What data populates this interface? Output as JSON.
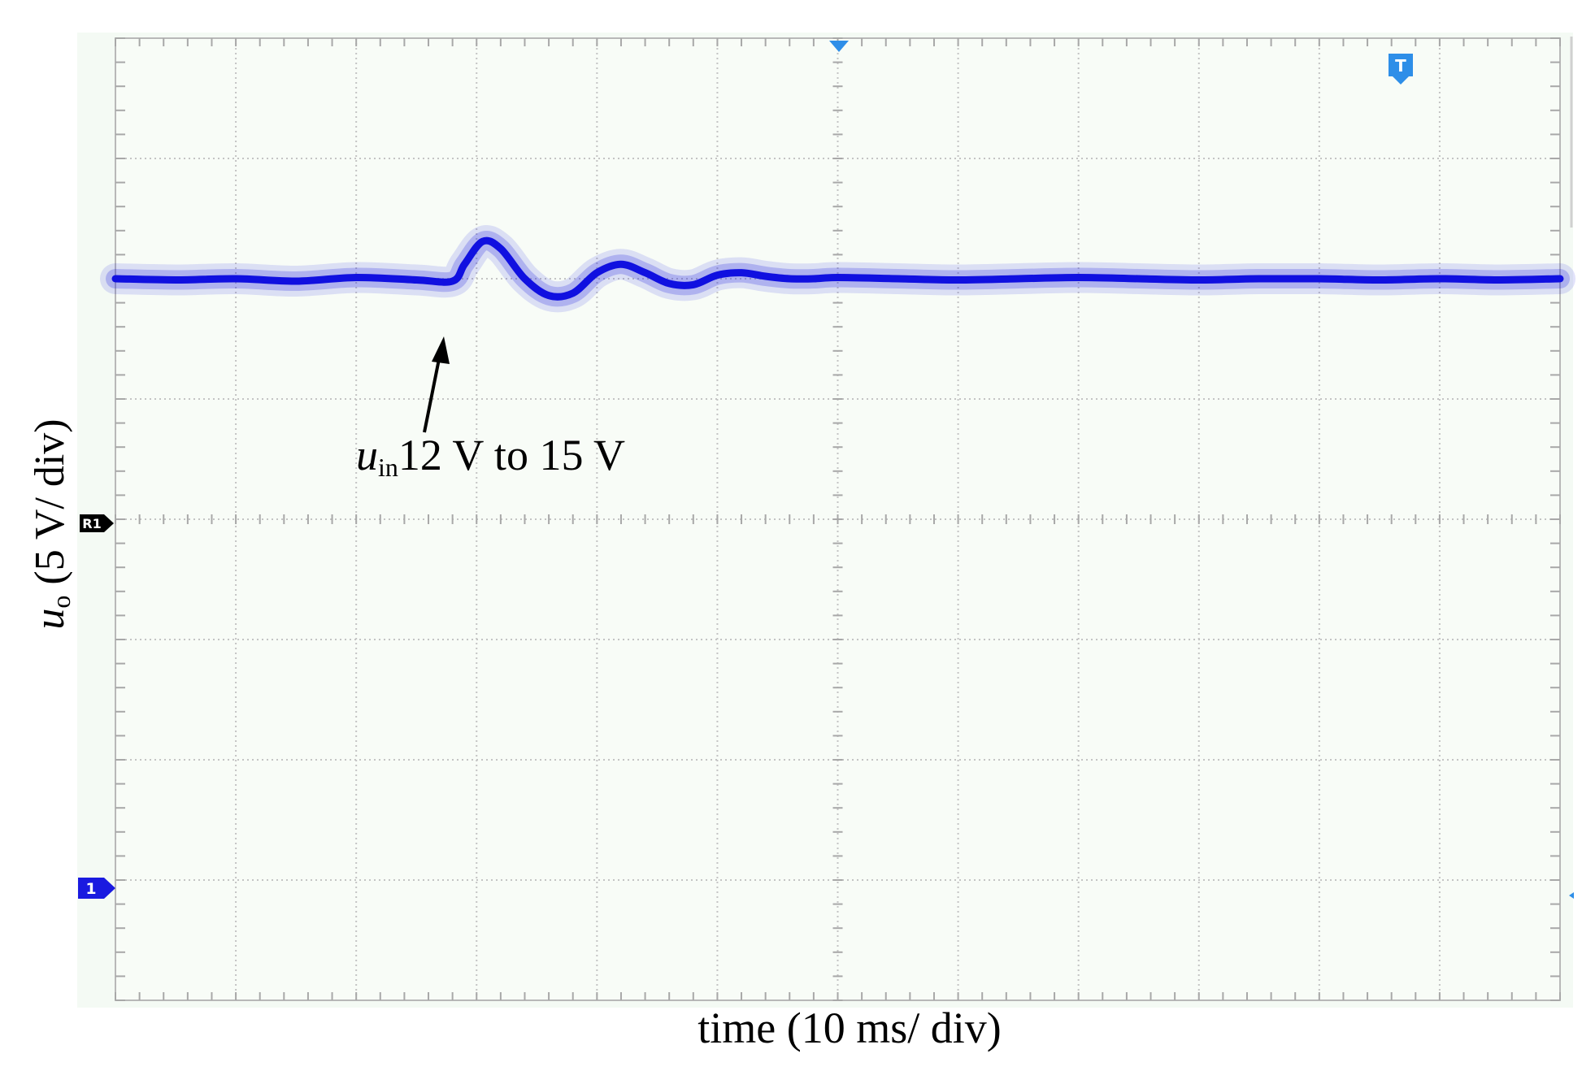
{
  "chart_data": {
    "type": "line",
    "title": "",
    "xlabel": "time (10 ms/ div)",
    "ylabel": {
      "var": "u",
      "sub": "o",
      "rest": " (5 V/ div)"
    },
    "x_divisions": 12,
    "y_divisions": 8,
    "xlim": [
      0,
      12
    ],
    "ylim": [
      -1,
      7
    ],
    "grid": true,
    "series": [
      {
        "color": "#1010e0",
        "x": [
          0,
          0.5,
          1.0,
          1.5,
          2.0,
          2.5,
          2.8,
          2.9,
          3.05,
          3.2,
          3.4,
          3.6,
          3.8,
          4.0,
          4.2,
          4.4,
          4.6,
          4.8,
          5.0,
          5.2,
          5.4,
          5.6,
          5.8,
          6.0,
          6.5,
          7.0,
          7.5,
          8.0,
          8.5,
          9.0,
          9.5,
          10.0,
          10.5,
          11.0,
          11.5,
          12.0
        ],
        "y": [
          5.0,
          4.99,
          5.0,
          4.98,
          5.01,
          4.99,
          4.98,
          5.12,
          5.31,
          5.25,
          5.0,
          4.86,
          4.88,
          5.05,
          5.12,
          5.05,
          4.96,
          4.95,
          5.03,
          5.05,
          5.02,
          5.0,
          5.0,
          5.01,
          5.0,
          4.99,
          5.0,
          5.01,
          5.0,
          4.99,
          5.0,
          5.0,
          4.99,
          5.0,
          4.99,
          5.0
        ]
      }
    ],
    "annotations": [
      {
        "var": "u",
        "sub": "in",
        "text": "12 V to 15 V"
      }
    ],
    "markers": {
      "ref": "R1",
      "channel": "1",
      "trigger": "T"
    }
  }
}
